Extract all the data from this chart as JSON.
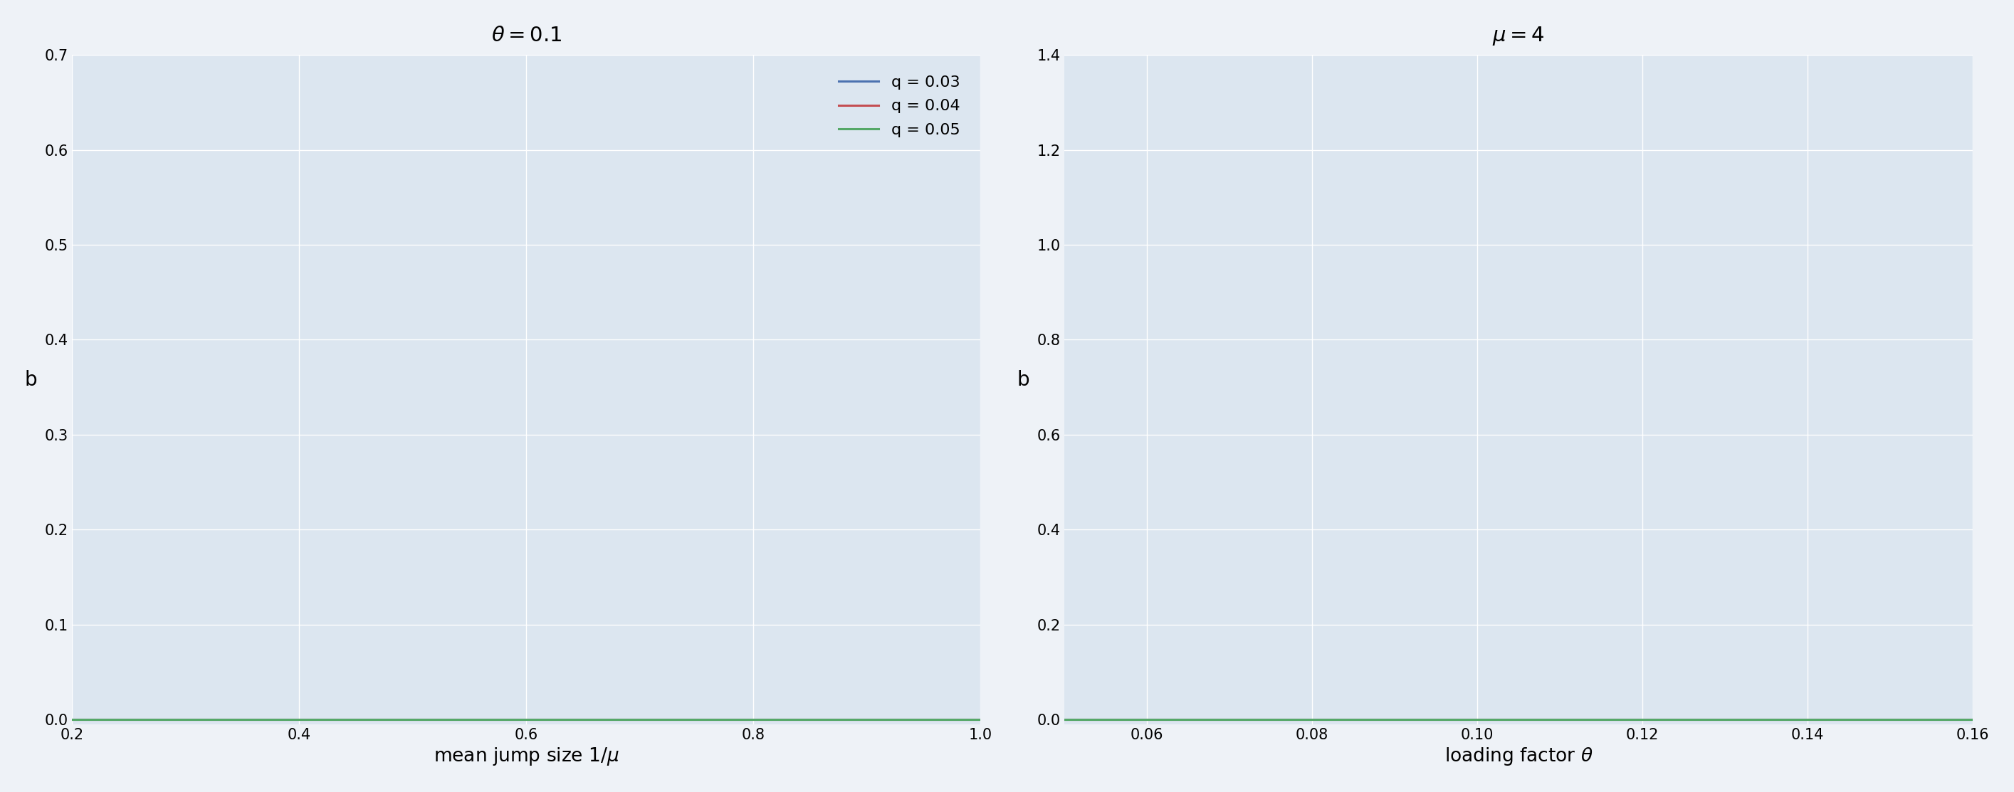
{
  "left_title": "$\\theta = 0.1$",
  "right_title": "$\\mu = 4$",
  "left_xlabel": "mean jump size $1/\\mu$",
  "right_xlabel": "loading factor $\\theta$",
  "ylabel": "b",
  "theta_fixed": 0.1,
  "mu_fixed": 4.0,
  "q_values": [
    0.03,
    0.04,
    0.05
  ],
  "q_labels": [
    "q = 0.03",
    "q = 0.04",
    "q = 0.05"
  ],
  "colors": [
    "#4c72b0",
    "#c44e52",
    "#55a868"
  ],
  "left_xlim": [
    0.2,
    1.0
  ],
  "left_ylim": [
    -0.005,
    0.7
  ],
  "right_xlim": [
    0.05,
    0.16
  ],
  "right_ylim": [
    -0.01,
    1.4
  ],
  "background_color": "#dce6f0",
  "grid_color": "#ffffff",
  "linewidth": 2.2
}
